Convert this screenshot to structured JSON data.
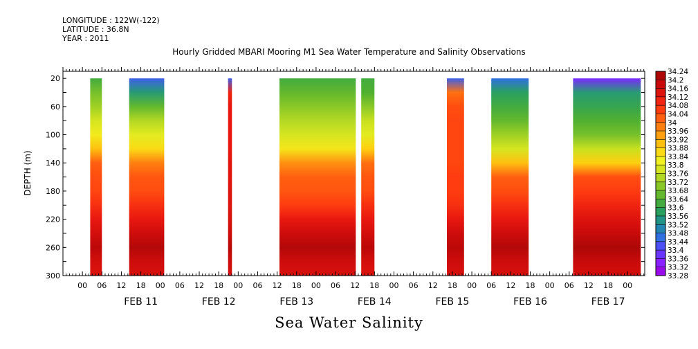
{
  "header": {
    "longitude": "LONGITUDE : 122W(-122)",
    "latitude": "LATITUDE : 36.8N",
    "year": "YEAR : 2011",
    "title": "Hourly Gridded MBARI Mooring M1 Sea Water Temperature and Salinity Observations",
    "variable": "Sea Water Salinity"
  },
  "colors": {
    "colorbar_stops": [
      "#a000e0",
      "#8a20ff",
      "#5a40ff",
      "#3070e0",
      "#20909a",
      "#2aa060",
      "#50b030",
      "#8ac828",
      "#c8e020",
      "#f0f020",
      "#ffd010",
      "#ffa010",
      "#ff7010",
      "#ff3c10",
      "#e81810",
      "#c80a0a",
      "#a00505"
    ]
  },
  "chart_data": {
    "type": "heatmap",
    "title": "Hourly Gridded MBARI Mooring M1 Sea Water Temperature and Salinity Observations",
    "xlabel": "",
    "ylabel": "DEPTH (m)",
    "y_ticks": [
      20,
      60,
      100,
      140,
      180,
      220,
      260,
      300
    ],
    "ylim": [
      300,
      10
    ],
    "x_hour_ticks": [
      "00",
      "06",
      "12",
      "18",
      "00",
      "06",
      "12",
      "18",
      "00",
      "06",
      "12",
      "18",
      "00",
      "06",
      "12",
      "18",
      "00",
      "06",
      "12",
      "18",
      "00",
      "06",
      "12",
      "18",
      "00",
      "06",
      "12",
      "18",
      "00",
      "06",
      "12",
      "18",
      "00",
      "06",
      "12",
      "18",
      "00",
      "06",
      "12",
      "18",
      "00",
      "06",
      "12",
      "18",
      "00",
      "06",
      "12",
      "18",
      "00",
      "06",
      "12",
      "18"
    ],
    "x_day_labels": [
      "FEB 11",
      "FEB 12",
      "FEB 13",
      "FEB 14",
      "FEB 15",
      "FEB 16",
      "FEB 17"
    ],
    "colorbar_levels": [
      "34.24",
      "34.2",
      "34.16",
      "34.12",
      "34.08",
      "34.04",
      "34",
      "33.96",
      "33.92",
      "33.88",
      "33.84",
      "33.8",
      "33.76",
      "33.72",
      "33.68",
      "33.64",
      "33.6",
      "33.56",
      "33.52",
      "33.48",
      "33.44",
      "33.4",
      "33.36",
      "33.32",
      "33.28"
    ],
    "depth_profile_depths": [
      20,
      40,
      60,
      80,
      100,
      120,
      140,
      160,
      180,
      200,
      220,
      240,
      260,
      280,
      300
    ],
    "data_blocks": [
      {
        "start_day": 10.85,
        "end_day": 11.0,
        "profile": [
          33.62,
          33.68,
          33.72,
          33.78,
          33.83,
          33.9,
          34.02,
          34.04,
          34.05,
          34.08,
          34.12,
          34.16,
          34.2,
          34.16,
          34.14
        ]
      },
      {
        "start_day": 11.35,
        "end_day": 11.8,
        "profile": [
          33.44,
          33.56,
          33.66,
          33.74,
          33.8,
          33.86,
          33.98,
          34.03,
          34.04,
          34.08,
          34.12,
          34.17,
          34.21,
          34.17,
          34.15
        ]
      },
      {
        "start_day": 12.62,
        "end_day": 12.67,
        "profile": [
          33.44,
          34.1,
          34.12,
          34.12,
          34.12,
          34.12,
          34.13,
          34.13,
          34.14,
          34.14,
          34.15,
          34.17,
          34.2,
          34.17,
          34.15
        ]
      },
      {
        "start_day": 13.28,
        "end_day": 14.26,
        "profile": [
          33.62,
          33.66,
          33.7,
          33.74,
          33.78,
          33.84,
          33.96,
          34.02,
          34.03,
          34.06,
          34.12,
          34.17,
          34.21,
          34.17,
          34.15
        ]
      },
      {
        "start_day": 14.33,
        "end_day": 14.5,
        "profile": [
          33.62,
          33.64,
          33.7,
          33.76,
          33.8,
          33.88,
          34.0,
          34.03,
          34.04,
          34.08,
          34.12,
          34.16,
          34.2,
          34.16,
          34.14
        ]
      },
      {
        "start_day": 15.43,
        "end_day": 15.65,
        "profile": [
          33.44,
          34.0,
          34.04,
          34.05,
          34.05,
          34.05,
          34.05,
          34.06,
          34.06,
          34.08,
          34.12,
          34.17,
          34.2,
          34.17,
          34.15
        ]
      },
      {
        "start_day": 16.0,
        "end_day": 16.48,
        "profile": [
          33.46,
          33.58,
          33.62,
          33.66,
          33.72,
          33.78,
          33.9,
          34.02,
          34.04,
          34.08,
          34.12,
          34.17,
          34.21,
          34.17,
          34.15
        ]
      },
      {
        "start_day": 17.05,
        "end_day": 17.92,
        "profile": [
          33.36,
          33.56,
          33.6,
          33.64,
          33.68,
          33.76,
          33.88,
          34.04,
          34.06,
          34.1,
          34.14,
          34.18,
          34.22,
          34.18,
          34.16
        ]
      }
    ]
  }
}
